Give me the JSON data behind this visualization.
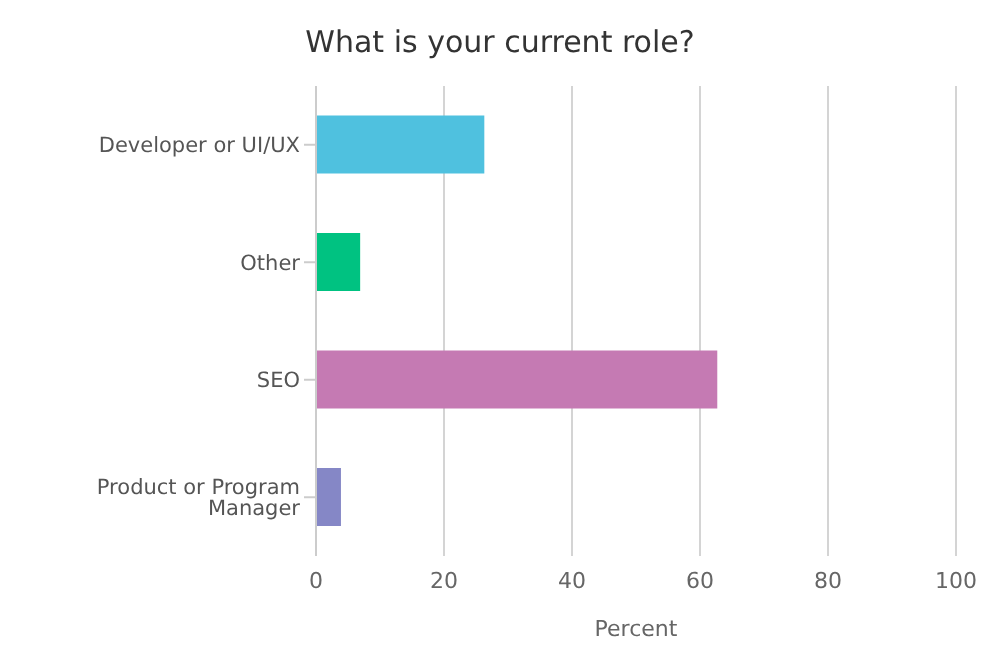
{
  "chart_data": {
    "type": "bar",
    "orientation": "horizontal",
    "title": "What is your current role?",
    "xlabel": "Percent",
    "categories": [
      "Developer or UI/UX",
      "Other",
      "SEO",
      "Product or Program Manager"
    ],
    "values": [
      26.3,
      6.9,
      62.7,
      3.9
    ],
    "colors": [
      "#4fc1df",
      "#00c281",
      "#c57ab3",
      "#8587c6"
    ],
    "xlim": [
      0,
      100
    ],
    "xticks": [
      0,
      20,
      40,
      60,
      80,
      100
    ],
    "grid": "x"
  }
}
